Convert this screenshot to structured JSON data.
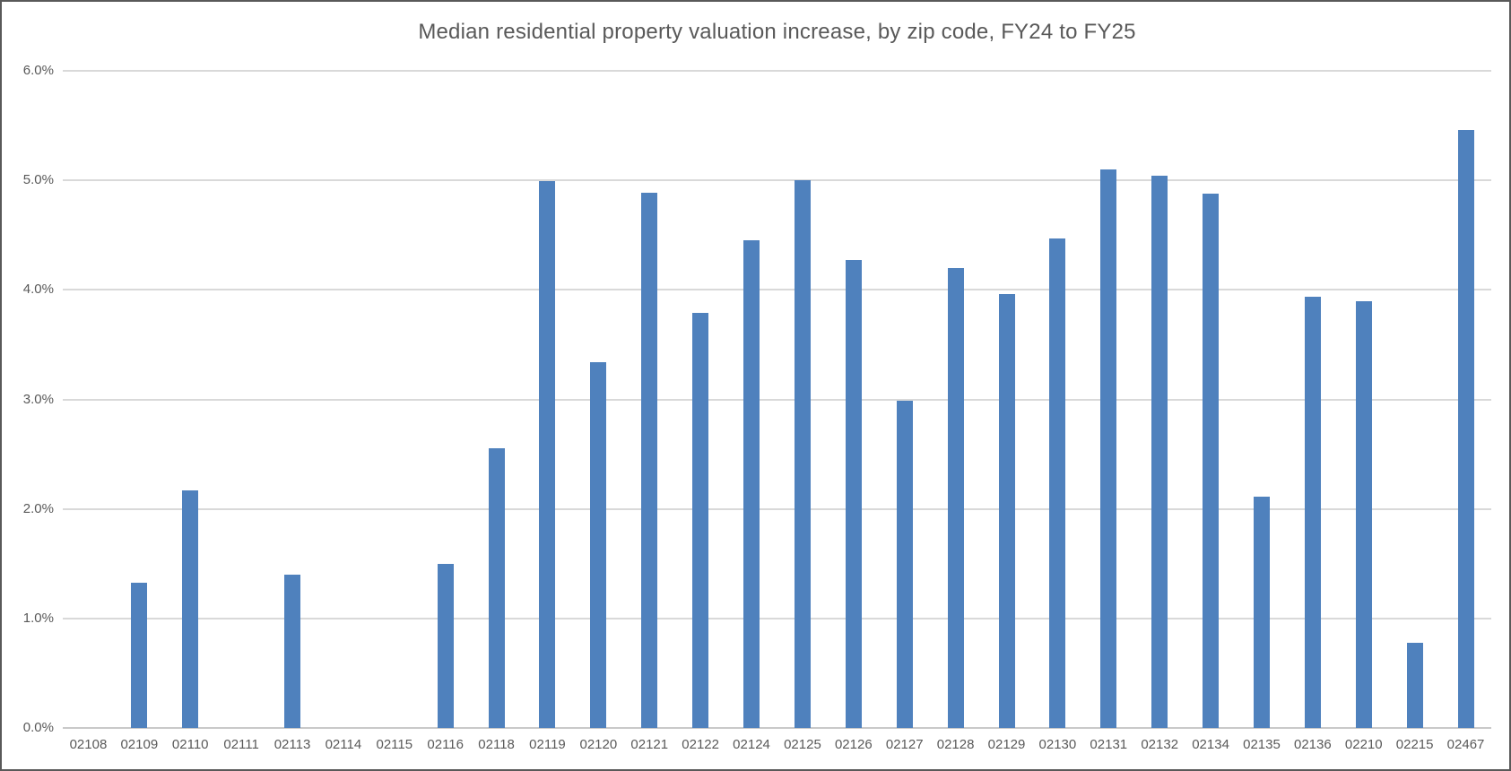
{
  "chart_data": {
    "type": "bar",
    "title": "Median residential property valuation increase, by zip code, FY24 to FY25",
    "xlabel": "",
    "ylabel": "",
    "categories": [
      "02108",
      "02109",
      "02110",
      "02111",
      "02113",
      "02114",
      "02115",
      "02116",
      "02118",
      "02119",
      "02120",
      "02121",
      "02122",
      "02124",
      "02125",
      "02126",
      "02127",
      "02128",
      "02129",
      "02130",
      "02131",
      "02132",
      "02134",
      "02135",
      "02136",
      "02210",
      "02215",
      "02467"
    ],
    "values": [
      0,
      1.33,
      2.17,
      0,
      1.4,
      0,
      0,
      1.5,
      2.55,
      4.99,
      3.34,
      4.89,
      3.79,
      4.45,
      5.0,
      4.27,
      2.99,
      4.2,
      3.96,
      4.47,
      5.1,
      5.04,
      4.88,
      2.11,
      3.94,
      3.9,
      0.78,
      5.46
    ],
    "value_unit": "%",
    "ylim": [
      0,
      6
    ],
    "ytick_step": 1,
    "ytick_labels": [
      "0.0%",
      "1.0%",
      "2.0%",
      "3.0%",
      "4.0%",
      "5.0%",
      "6.0%"
    ],
    "grid": true,
    "legend": false
  },
  "colors": {
    "bar": "#4f81bd",
    "gridline": "#d9d9d9",
    "axis_line": "#c9c9c9",
    "axis_text": "#595959",
    "title_text": "#595959",
    "frame_border": "#595959",
    "background": "#ffffff"
  }
}
